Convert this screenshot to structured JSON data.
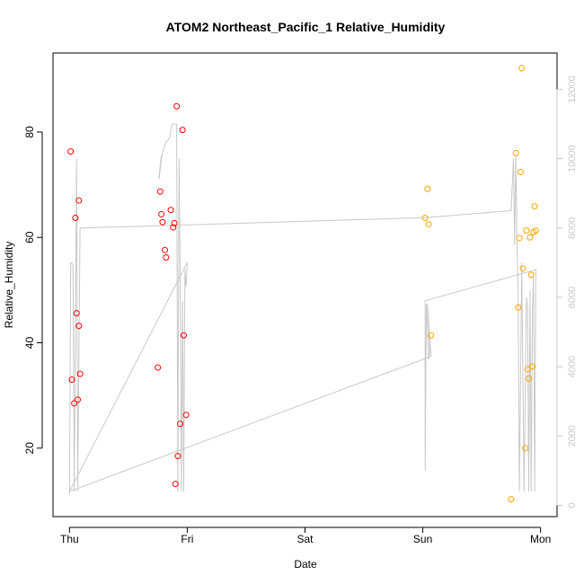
{
  "chart_data": {
    "type": "scatter",
    "title": "ATOM2 Northeast_Pacific_1 Relative_Humidity",
    "xlabel": "Date",
    "ylabel": "Relative_Humidity",
    "x_ticks": [
      "Thu",
      "Fri",
      "Sat",
      "Sun",
      "Mon"
    ],
    "x_tick_days": [
      0,
      1,
      2,
      3,
      4
    ],
    "xlim": [
      -0.14,
      4.14
    ],
    "ylim": [
      7,
      95
    ],
    "y_ticks": [
      20,
      40,
      60,
      80
    ],
    "y2_ticks": [
      0,
      2000,
      4000,
      6000,
      8000,
      10000,
      12000
    ],
    "y2lim": [
      -325,
      13050
    ],
    "grid": false,
    "colors": {
      "red_series": "#ff0000",
      "orange_series": "#ffa500",
      "line_series": "#c8c8c8",
      "right_axis": "#c8c8c8"
    },
    "series": [
      {
        "color": "red",
        "points": [
          [
            0.01,
            76.3
          ],
          [
            0.02,
            33.0
          ],
          [
            0.04,
            28.5
          ],
          [
            0.05,
            63.7
          ],
          [
            0.06,
            45.6
          ],
          [
            0.07,
            29.2
          ],
          [
            0.08,
            43.2
          ],
          [
            0.08,
            67.0
          ],
          [
            0.09,
            34.1
          ],
          [
            0.75,
            35.3
          ],
          [
            0.77,
            68.7
          ],
          [
            0.78,
            64.4
          ],
          [
            0.79,
            62.9
          ],
          [
            0.81,
            57.6
          ],
          [
            0.82,
            56.2
          ],
          [
            0.86,
            65.2
          ],
          [
            0.88,
            61.9
          ],
          [
            0.89,
            62.7
          ],
          [
            0.9,
            13.2
          ],
          [
            0.91,
            84.9
          ],
          [
            0.92,
            18.5
          ],
          [
            0.94,
            24.6
          ],
          [
            0.96,
            80.4
          ],
          [
            0.97,
            41.4
          ],
          [
            0.99,
            26.3
          ]
        ]
      },
      {
        "color": "orange",
        "points": [
          [
            3.02,
            63.7
          ],
          [
            3.04,
            69.2
          ],
          [
            3.05,
            62.5
          ],
          [
            3.07,
            41.4
          ],
          [
            3.75,
            10.3
          ],
          [
            3.79,
            76.0
          ],
          [
            3.81,
            46.7
          ],
          [
            3.82,
            59.9
          ],
          [
            3.83,
            72.4
          ],
          [
            3.84,
            92.1
          ],
          [
            3.85,
            54.1
          ],
          [
            3.87,
            20.0
          ],
          [
            3.88,
            61.3
          ],
          [
            3.89,
            35.0
          ],
          [
            3.9,
            33.2
          ],
          [
            3.91,
            60.0
          ],
          [
            3.92,
            52.9
          ],
          [
            3.93,
            35.5
          ],
          [
            3.94,
            61.0
          ],
          [
            3.95,
            65.9
          ],
          [
            3.96,
            61.3
          ]
        ]
      },
      {
        "color": "gray",
        "axis": "right",
        "points": [
          [
            0.0,
            300
          ],
          [
            0.01,
            7000
          ],
          [
            0.03,
            6950
          ],
          [
            0.04,
            400
          ],
          [
            0.06,
            10000
          ],
          [
            0.07,
            400
          ],
          [
            0.09,
            8000
          ],
          [
            0.1,
            8000
          ],
          [
            3.01,
            8300
          ],
          [
            3.75,
            8500
          ],
          [
            3.77,
            10000
          ],
          [
            3.78,
            7500
          ],
          [
            3.79,
            10100
          ],
          [
            3.8,
            7700
          ],
          [
            3.81,
            6000
          ],
          [
            3.82,
            400
          ],
          [
            3.84,
            7000
          ],
          [
            3.86,
            400
          ],
          [
            3.88,
            6000
          ],
          [
            3.89,
            5700
          ],
          [
            3.9,
            400
          ],
          [
            3.91,
            6200
          ],
          [
            3.92,
            400
          ],
          [
            3.93,
            5500
          ],
          [
            3.94,
            6600
          ],
          [
            3.95,
            400
          ],
          [
            3.96,
            6800
          ],
          [
            3.02,
            5900
          ],
          [
            3.02,
            1000
          ],
          [
            3.03,
            5800
          ],
          [
            3.05,
            4200
          ],
          [
            3.06,
            4500
          ],
          [
            3.04,
            5800
          ],
          [
            3.07,
            4300
          ],
          [
            0.0,
            400
          ],
          [
            1.0,
            7000
          ],
          [
            0.99,
            6300
          ],
          [
            0.98,
            6800
          ],
          [
            0.97,
            400
          ],
          [
            0.96,
            5900
          ],
          [
            0.95,
            400
          ],
          [
            0.94,
            6500
          ],
          [
            0.93,
            10000
          ],
          [
            0.92,
            400
          ],
          [
            0.91,
            11000
          ],
          [
            0.89,
            11000
          ],
          [
            0.87,
            11000
          ],
          [
            0.85,
            10600
          ],
          [
            0.83,
            10500
          ],
          [
            0.82,
            10500
          ],
          [
            0.8,
            10300
          ],
          [
            0.78,
            10000
          ],
          [
            0.76,
            9400
          ],
          [
            0.76,
            9500
          ],
          [
            0.78,
            10100
          ]
        ]
      }
    ]
  }
}
